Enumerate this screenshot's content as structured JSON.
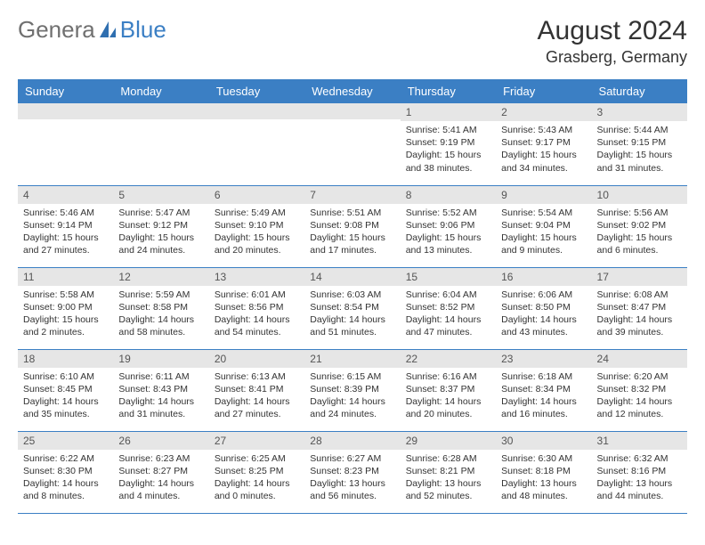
{
  "brand": {
    "part1": "Genera",
    "part2": "Blue"
  },
  "title": "August 2024",
  "location": "Grasberg, Germany",
  "header_color": "#3b7fc4",
  "header_text_color": "#ffffff",
  "daynum_bg": "#e6e6e6",
  "cell_border_color": "#3b7fc4",
  "background_color": "#ffffff",
  "text_color": "#333333",
  "font_family": "Arial",
  "title_fontsize": 30,
  "location_fontsize": 18,
  "header_fontsize": 13,
  "body_fontsize": 10.5,
  "columns": [
    "Sunday",
    "Monday",
    "Tuesday",
    "Wednesday",
    "Thursday",
    "Friday",
    "Saturday"
  ],
  "weeks": [
    [
      {
        "day": "",
        "sunrise": "",
        "sunset": "",
        "daylight": ""
      },
      {
        "day": "",
        "sunrise": "",
        "sunset": "",
        "daylight": ""
      },
      {
        "day": "",
        "sunrise": "",
        "sunset": "",
        "daylight": ""
      },
      {
        "day": "",
        "sunrise": "",
        "sunset": "",
        "daylight": ""
      },
      {
        "day": "1",
        "sunrise": "Sunrise: 5:41 AM",
        "sunset": "Sunset: 9:19 PM",
        "daylight": "Daylight: 15 hours and 38 minutes."
      },
      {
        "day": "2",
        "sunrise": "Sunrise: 5:43 AM",
        "sunset": "Sunset: 9:17 PM",
        "daylight": "Daylight: 15 hours and 34 minutes."
      },
      {
        "day": "3",
        "sunrise": "Sunrise: 5:44 AM",
        "sunset": "Sunset: 9:15 PM",
        "daylight": "Daylight: 15 hours and 31 minutes."
      }
    ],
    [
      {
        "day": "4",
        "sunrise": "Sunrise: 5:46 AM",
        "sunset": "Sunset: 9:14 PM",
        "daylight": "Daylight: 15 hours and 27 minutes."
      },
      {
        "day": "5",
        "sunrise": "Sunrise: 5:47 AM",
        "sunset": "Sunset: 9:12 PM",
        "daylight": "Daylight: 15 hours and 24 minutes."
      },
      {
        "day": "6",
        "sunrise": "Sunrise: 5:49 AM",
        "sunset": "Sunset: 9:10 PM",
        "daylight": "Daylight: 15 hours and 20 minutes."
      },
      {
        "day": "7",
        "sunrise": "Sunrise: 5:51 AM",
        "sunset": "Sunset: 9:08 PM",
        "daylight": "Daylight: 15 hours and 17 minutes."
      },
      {
        "day": "8",
        "sunrise": "Sunrise: 5:52 AM",
        "sunset": "Sunset: 9:06 PM",
        "daylight": "Daylight: 15 hours and 13 minutes."
      },
      {
        "day": "9",
        "sunrise": "Sunrise: 5:54 AM",
        "sunset": "Sunset: 9:04 PM",
        "daylight": "Daylight: 15 hours and 9 minutes."
      },
      {
        "day": "10",
        "sunrise": "Sunrise: 5:56 AM",
        "sunset": "Sunset: 9:02 PM",
        "daylight": "Daylight: 15 hours and 6 minutes."
      }
    ],
    [
      {
        "day": "11",
        "sunrise": "Sunrise: 5:58 AM",
        "sunset": "Sunset: 9:00 PM",
        "daylight": "Daylight: 15 hours and 2 minutes."
      },
      {
        "day": "12",
        "sunrise": "Sunrise: 5:59 AM",
        "sunset": "Sunset: 8:58 PM",
        "daylight": "Daylight: 14 hours and 58 minutes."
      },
      {
        "day": "13",
        "sunrise": "Sunrise: 6:01 AM",
        "sunset": "Sunset: 8:56 PM",
        "daylight": "Daylight: 14 hours and 54 minutes."
      },
      {
        "day": "14",
        "sunrise": "Sunrise: 6:03 AM",
        "sunset": "Sunset: 8:54 PM",
        "daylight": "Daylight: 14 hours and 51 minutes."
      },
      {
        "day": "15",
        "sunrise": "Sunrise: 6:04 AM",
        "sunset": "Sunset: 8:52 PM",
        "daylight": "Daylight: 14 hours and 47 minutes."
      },
      {
        "day": "16",
        "sunrise": "Sunrise: 6:06 AM",
        "sunset": "Sunset: 8:50 PM",
        "daylight": "Daylight: 14 hours and 43 minutes."
      },
      {
        "day": "17",
        "sunrise": "Sunrise: 6:08 AM",
        "sunset": "Sunset: 8:47 PM",
        "daylight": "Daylight: 14 hours and 39 minutes."
      }
    ],
    [
      {
        "day": "18",
        "sunrise": "Sunrise: 6:10 AM",
        "sunset": "Sunset: 8:45 PM",
        "daylight": "Daylight: 14 hours and 35 minutes."
      },
      {
        "day": "19",
        "sunrise": "Sunrise: 6:11 AM",
        "sunset": "Sunset: 8:43 PM",
        "daylight": "Daylight: 14 hours and 31 minutes."
      },
      {
        "day": "20",
        "sunrise": "Sunrise: 6:13 AM",
        "sunset": "Sunset: 8:41 PM",
        "daylight": "Daylight: 14 hours and 27 minutes."
      },
      {
        "day": "21",
        "sunrise": "Sunrise: 6:15 AM",
        "sunset": "Sunset: 8:39 PM",
        "daylight": "Daylight: 14 hours and 24 minutes."
      },
      {
        "day": "22",
        "sunrise": "Sunrise: 6:16 AM",
        "sunset": "Sunset: 8:37 PM",
        "daylight": "Daylight: 14 hours and 20 minutes."
      },
      {
        "day": "23",
        "sunrise": "Sunrise: 6:18 AM",
        "sunset": "Sunset: 8:34 PM",
        "daylight": "Daylight: 14 hours and 16 minutes."
      },
      {
        "day": "24",
        "sunrise": "Sunrise: 6:20 AM",
        "sunset": "Sunset: 8:32 PM",
        "daylight": "Daylight: 14 hours and 12 minutes."
      }
    ],
    [
      {
        "day": "25",
        "sunrise": "Sunrise: 6:22 AM",
        "sunset": "Sunset: 8:30 PM",
        "daylight": "Daylight: 14 hours and 8 minutes."
      },
      {
        "day": "26",
        "sunrise": "Sunrise: 6:23 AM",
        "sunset": "Sunset: 8:27 PM",
        "daylight": "Daylight: 14 hours and 4 minutes."
      },
      {
        "day": "27",
        "sunrise": "Sunrise: 6:25 AM",
        "sunset": "Sunset: 8:25 PM",
        "daylight": "Daylight: 14 hours and 0 minutes."
      },
      {
        "day": "28",
        "sunrise": "Sunrise: 6:27 AM",
        "sunset": "Sunset: 8:23 PM",
        "daylight": "Daylight: 13 hours and 56 minutes."
      },
      {
        "day": "29",
        "sunrise": "Sunrise: 6:28 AM",
        "sunset": "Sunset: 8:21 PM",
        "daylight": "Daylight: 13 hours and 52 minutes."
      },
      {
        "day": "30",
        "sunrise": "Sunrise: 6:30 AM",
        "sunset": "Sunset: 8:18 PM",
        "daylight": "Daylight: 13 hours and 48 minutes."
      },
      {
        "day": "31",
        "sunrise": "Sunrise: 6:32 AM",
        "sunset": "Sunset: 8:16 PM",
        "daylight": "Daylight: 13 hours and 44 minutes."
      }
    ]
  ]
}
